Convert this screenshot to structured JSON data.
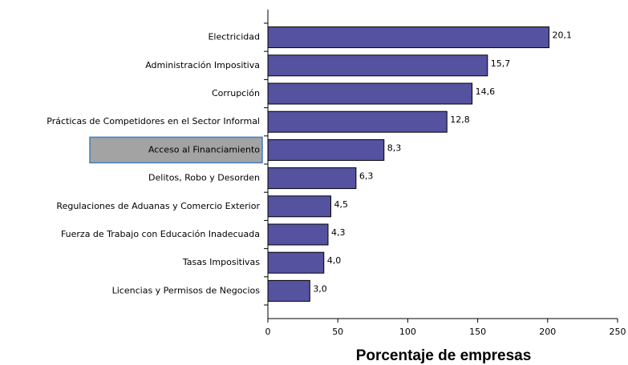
{
  "chart_data": {
    "type": "bar",
    "orientation": "horizontal",
    "xlabel": "Porcentaje de empresas",
    "categories": [
      "Electricidad",
      "Administración Impositiva",
      "Corrupción",
      "Prácticas de Competidores en el Sector Informal",
      "Acceso al Financiamiento",
      "Delitos, Robo y Desorden",
      "Regulaciones de Aduanas y Comercio Exterior",
      "Fuerza de Trabajo con Educación Inadecuada",
      "Tasas Impositivas",
      "Licencias y Permisos de Negocios"
    ],
    "values": [
      201,
      157,
      146,
      128,
      83,
      63,
      45,
      43,
      40,
      30
    ],
    "value_labels": [
      "20,1",
      "15,7",
      "14,6",
      "12,8",
      "8,3",
      "6,3",
      "4,5",
      "4,3",
      "4,0",
      "3,0"
    ],
    "color": "#5552a0",
    "xlim": [
      0,
      250
    ],
    "xticks": [
      0,
      50,
      100,
      150,
      200,
      250
    ],
    "highlighted": "Acceso al Financiamiento"
  }
}
